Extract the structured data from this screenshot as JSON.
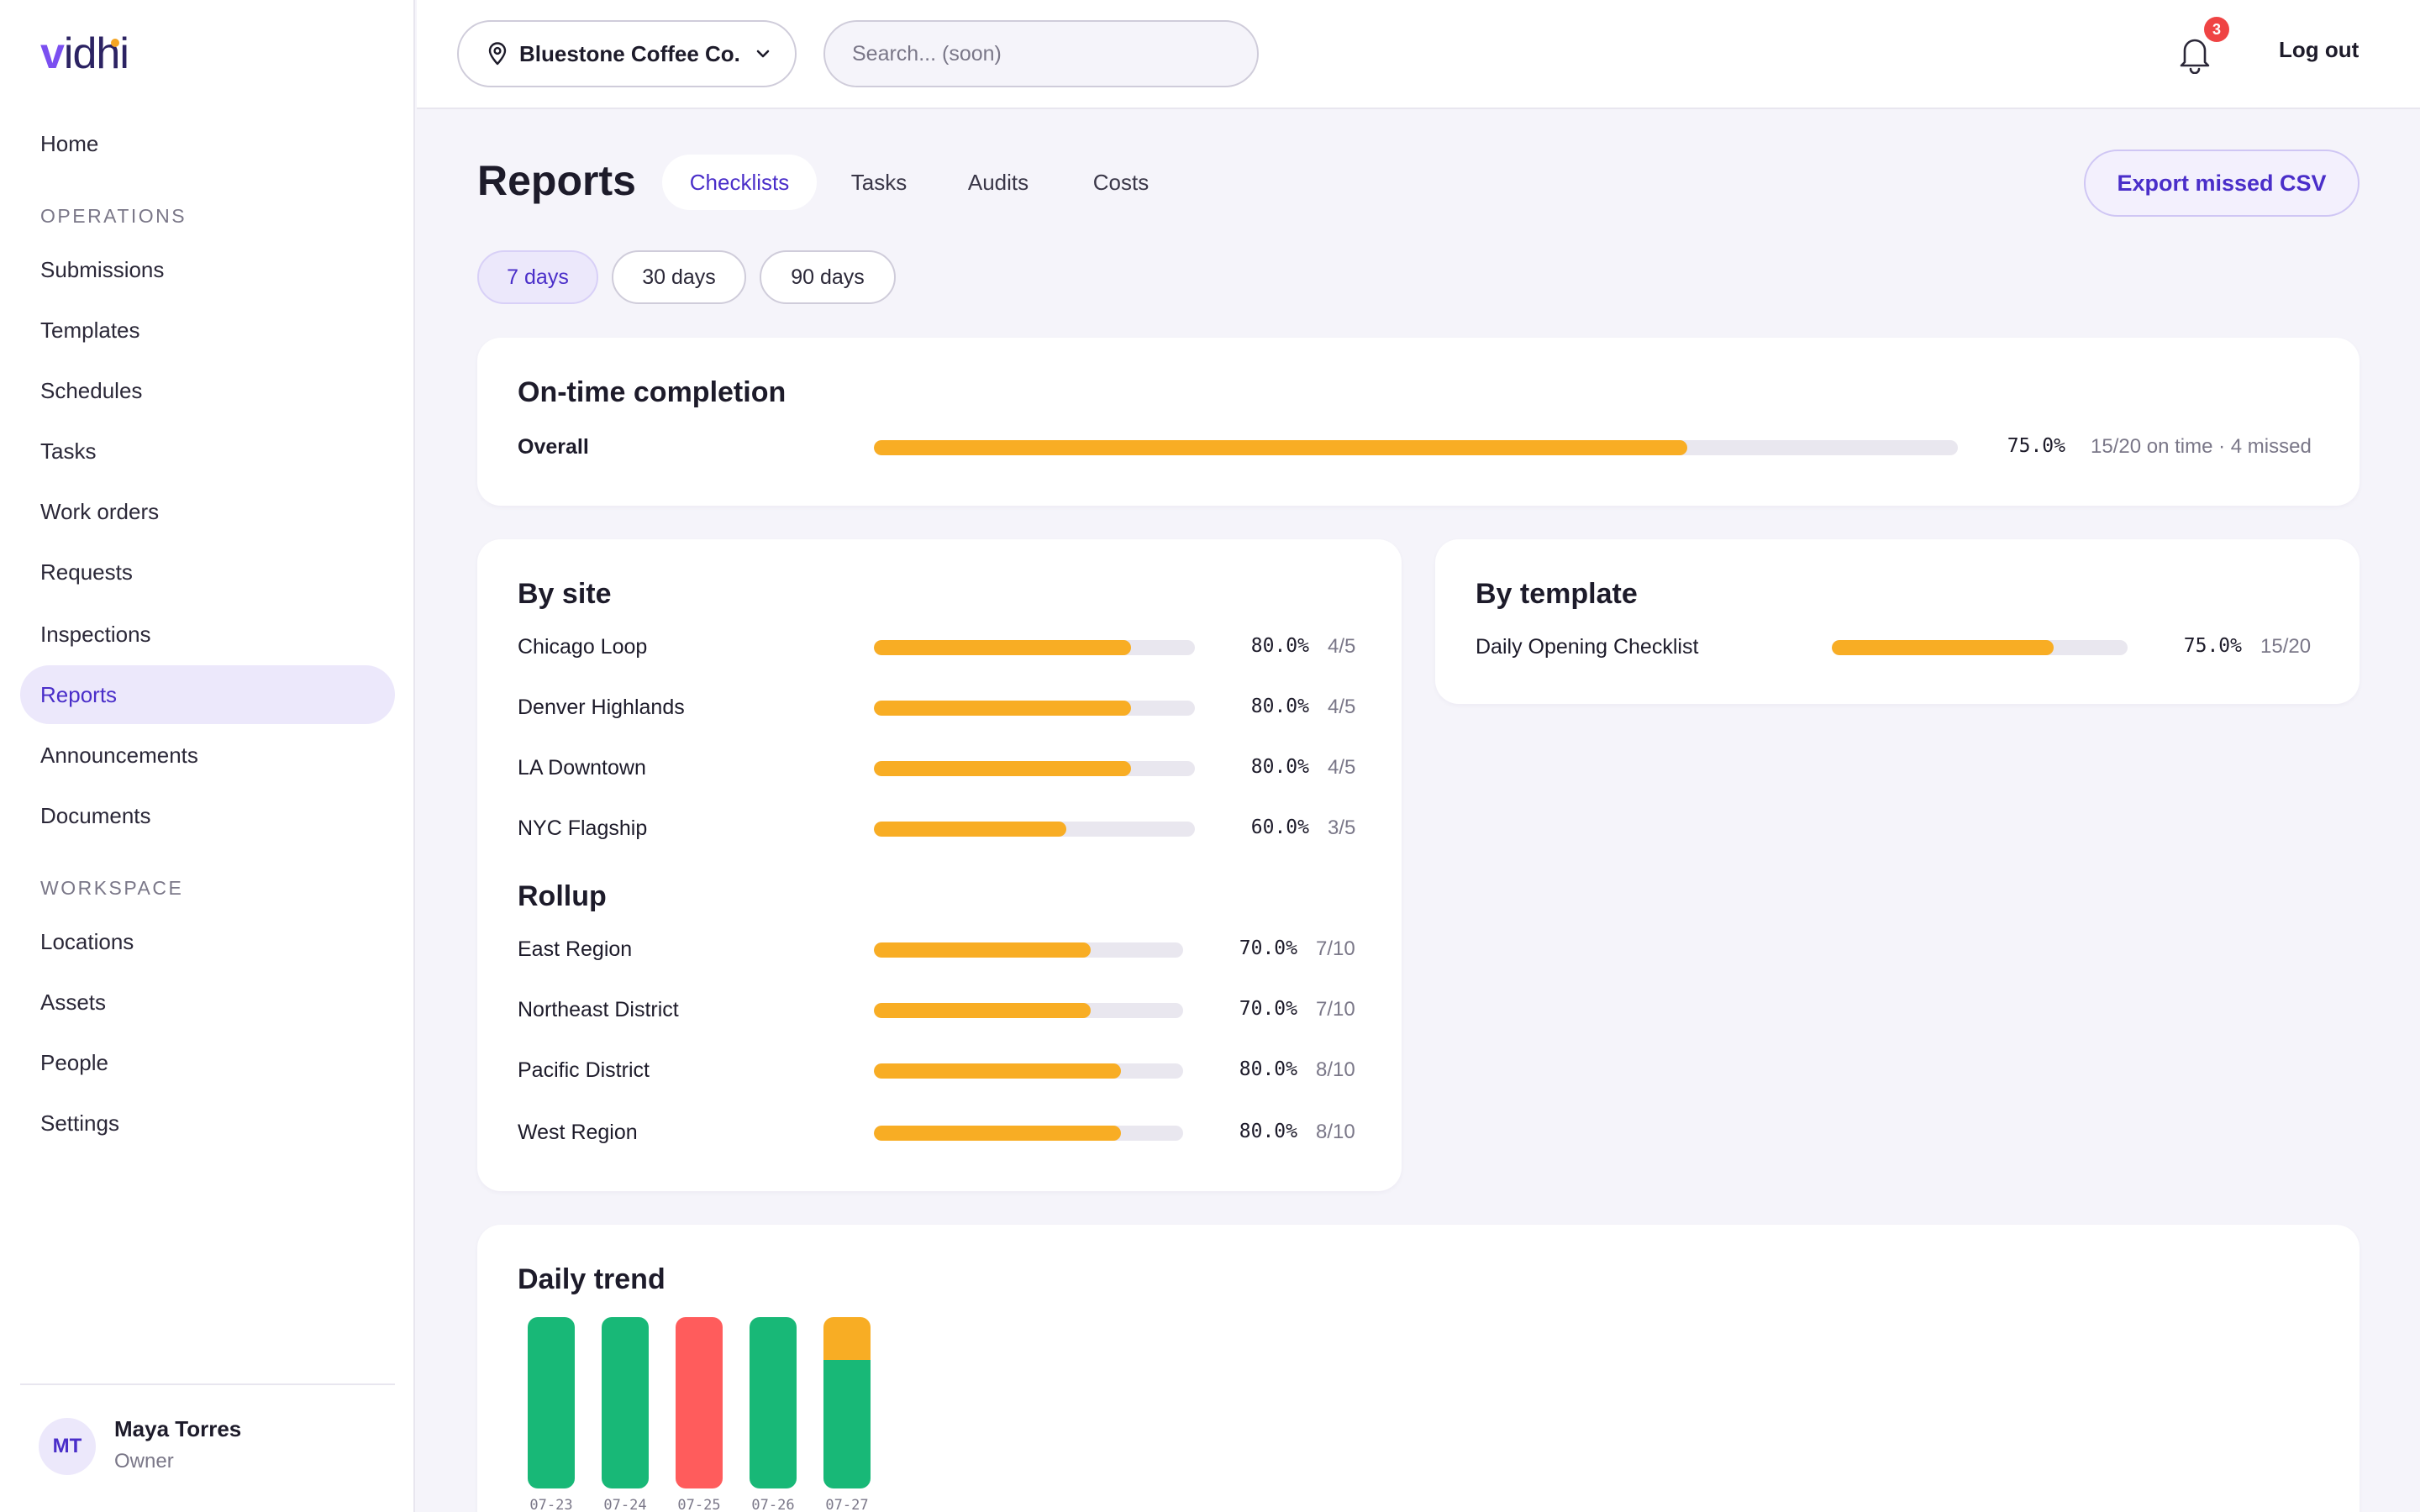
{
  "brand": {
    "logo_v": "v",
    "logo_rest": "idhi"
  },
  "sidebar": {
    "home": "Home",
    "ops_section": "OPERATIONS",
    "ops": [
      "Submissions",
      "Templates",
      "Schedules",
      "Tasks",
      "Work orders",
      "Requests",
      "Inspections",
      "Reports",
      "Announcements",
      "Documents"
    ],
    "workspace_section": "WORKSPACE",
    "workspace": [
      "Locations",
      "Assets",
      "People",
      "Settings"
    ],
    "active": "Reports"
  },
  "user": {
    "initials": "MT",
    "name": "Maya Torres",
    "role": "Owner"
  },
  "header": {
    "org": "Bluestone Coffee Co.",
    "search_placeholder": "Search... (soon)",
    "notification_count": "3",
    "logout": "Log out"
  },
  "page": {
    "title": "Reports",
    "tabs": [
      "Checklists",
      "Tasks",
      "Audits",
      "Costs"
    ],
    "active_tab": "Checklists",
    "export_label": "Export missed CSV",
    "ranges": [
      "7 days",
      "30 days",
      "90 days"
    ],
    "active_range": "7 days"
  },
  "on_time": {
    "title": "On-time completion",
    "label": "Overall",
    "fraction": 0.75,
    "pct": "75.0%",
    "detail": "15/20 on time · 4 missed"
  },
  "by_site": {
    "title": "By site",
    "rows": [
      {
        "label": "Chicago Loop",
        "fraction": 0.8,
        "pct": "80.0%",
        "count": "4/5"
      },
      {
        "label": "Denver Highlands",
        "fraction": 0.8,
        "pct": "80.0%",
        "count": "4/5"
      },
      {
        "label": "LA Downtown",
        "fraction": 0.8,
        "pct": "80.0%",
        "count": "4/5"
      },
      {
        "label": "NYC Flagship",
        "fraction": 0.6,
        "pct": "60.0%",
        "count": "3/5"
      }
    ]
  },
  "rollup": {
    "title": "Rollup",
    "rows": [
      {
        "label": "East Region",
        "fraction": 0.7,
        "pct": "70.0%",
        "count": "7/10"
      },
      {
        "label": "Northeast District",
        "fraction": 0.7,
        "pct": "70.0%",
        "count": "7/10"
      },
      {
        "label": "Pacific District",
        "fraction": 0.8,
        "pct": "80.0%",
        "count": "8/10"
      },
      {
        "label": "West Region",
        "fraction": 0.8,
        "pct": "80.0%",
        "count": "8/10"
      }
    ]
  },
  "by_template": {
    "title": "By template",
    "rows": [
      {
        "label": "Daily Opening Checklist",
        "fraction": 0.75,
        "pct": "75.0%",
        "count": "15/20"
      }
    ]
  },
  "daily_trend": {
    "title": "Daily trend",
    "colors": {
      "on_time": "#18b877",
      "missed": "#ff5c5c",
      "late": "#f8ad24"
    },
    "days": [
      {
        "date": "07-23",
        "on_time": 1.0,
        "late": 0,
        "missed": 0
      },
      {
        "date": "07-24",
        "on_time": 1.0,
        "late": 0,
        "missed": 0
      },
      {
        "date": "07-25",
        "on_time": 0,
        "late": 0,
        "missed": 1.0
      },
      {
        "date": "07-26",
        "on_time": 1.0,
        "late": 0,
        "missed": 0
      },
      {
        "date": "07-27",
        "on_time": 0.75,
        "late": 0.25,
        "missed": 0
      }
    ]
  }
}
